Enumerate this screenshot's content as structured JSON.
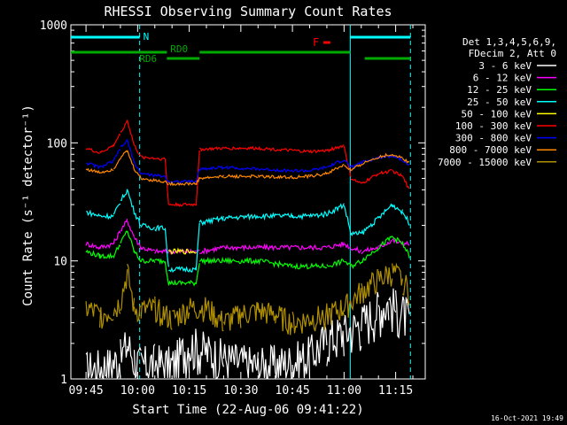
{
  "chart_data": {
    "type": "line",
    "title": "RHESSI Observing Summary Count Rates",
    "xlabel": "Start Time (22-Aug-06 09:41:22)",
    "ylabel": "Count Rate (s⁻¹ detector⁻¹)",
    "y_scale": "log",
    "ylim": [
      1,
      1000
    ],
    "xlim_minutes": [
      -4.4,
      98.6
    ],
    "y_ticks": [
      1,
      10,
      100,
      1000
    ],
    "y_tick_labels": [
      "1",
      "10",
      "100",
      "1000"
    ],
    "x_ticks": [
      0,
      15,
      30,
      45,
      60,
      75,
      90
    ],
    "x_tick_labels": [
      "09:45",
      "10:00",
      "10:15",
      "10:30",
      "10:45",
      "11:00",
      "11:15"
    ],
    "grid": false,
    "legend_position": "right",
    "legend_header": [
      "Det 1,3,4,5,6,9,",
      "FDecim 2, Att 0"
    ],
    "footer": "16-Oct-2021 19:49",
    "annotations": {
      "night_label": "N",
      "flare_label": "F",
      "rd0_label": "RD0",
      "rd6_label": "RD6",
      "night_bar_minutes": [
        [
          -4.4,
          15.6
        ],
        [
          76.8,
          94.3
        ]
      ],
      "day_lines_minutes": [
        15.6,
        76.8,
        94.3
      ],
      "rd0_bar_minutes": [
        [
          -4.4,
          23.5
        ],
        [
          33,
          76.8
        ],
        [
          81,
          94.3
        ]
      ],
      "rd6_bar_minutes": [
        [
          23.5,
          33
        ]
      ],
      "flare_bar_minutes": [
        [
          69,
          71
        ]
      ]
    },
    "series": [
      {
        "name": "3 - 6 keV",
        "color": "#ffffff",
        "x": [
          0,
          6,
          10,
          12,
          14,
          16,
          20,
          25,
          30,
          40,
          50,
          60,
          65,
          70,
          75,
          80,
          85,
          88,
          90,
          93,
          94
        ],
        "y": [
          1.2,
          1.3,
          1.5,
          2.0,
          1.5,
          1.3,
          1.4,
          1.3,
          2.0,
          1.5,
          1.3,
          1.4,
          1.6,
          2.2,
          2.5,
          3.0,
          4.0,
          4.5,
          4.0,
          3.5,
          3.0
        ]
      },
      {
        "name": "6 - 12 keV",
        "color": "#ff00ff",
        "x": [
          0,
          4,
          8,
          10,
          12,
          14,
          16,
          20,
          24,
          25,
          32,
          33,
          40,
          50,
          60,
          65,
          70,
          75,
          77,
          80,
          85,
          89,
          92,
          94
        ],
        "y": [
          14,
          13,
          14,
          18,
          22,
          16,
          13,
          12,
          12,
          12,
          12,
          12,
          13,
          13,
          13,
          13,
          13,
          14,
          13,
          12,
          13,
          15,
          14,
          14
        ]
      },
      {
        "name": "12 - 25 keV",
        "color": "#00ff00",
        "x": [
          0,
          4,
          8,
          10,
          12,
          14,
          16,
          20,
          23,
          24,
          32,
          33,
          40,
          50,
          60,
          65,
          70,
          75,
          77,
          80,
          85,
          89,
          92,
          94
        ],
        "y": [
          12,
          11,
          11,
          14,
          18,
          12,
          10,
          10,
          10,
          6.5,
          6.5,
          10,
          10,
          10,
          9,
          9,
          9,
          10,
          9,
          10,
          13,
          16,
          14,
          11
        ]
      },
      {
        "name": "25 - 50 keV",
        "color": "#00ffff",
        "x": [
          0,
          4,
          8,
          10,
          12,
          14,
          16,
          20,
          23,
          24,
          32,
          33,
          40,
          50,
          60,
          65,
          70,
          75,
          77,
          80,
          85,
          89,
          92,
          94
        ],
        "y": [
          26,
          24,
          24,
          32,
          40,
          26,
          20,
          19,
          19,
          8.5,
          8.5,
          21,
          23,
          24,
          24,
          24,
          25,
          30,
          17,
          17,
          23,
          30,
          26,
          21
        ]
      },
      {
        "name": "50 - 100 keV",
        "color": "#ffff00",
        "x": [
          0,
          4,
          8,
          10,
          12,
          14,
          16,
          20,
          23,
          24,
          32,
          33,
          94
        ],
        "y": [
          null,
          null,
          null,
          null,
          null,
          null,
          null,
          null,
          null,
          12,
          12,
          null,
          null
        ]
      },
      {
        "name": "100 - 300 keV",
        "color": "#ff0000",
        "x": [
          0,
          4,
          8,
          10,
          12,
          14,
          16,
          20,
          23,
          24,
          32,
          33,
          40,
          50,
          60,
          65,
          70,
          75,
          77,
          80,
          85,
          89,
          92,
          94
        ],
        "y": [
          90,
          82,
          95,
          120,
          155,
          95,
          76,
          74,
          73,
          30,
          30,
          88,
          90,
          90,
          86,
          84,
          86,
          95,
          50,
          45,
          55,
          58,
          52,
          40
        ]
      },
      {
        "name": "300 - 800 keV",
        "color": "#0000ff",
        "x": [
          0,
          4,
          8,
          10,
          12,
          14,
          16,
          20,
          23,
          24,
          32,
          33,
          40,
          50,
          60,
          65,
          70,
          75,
          77,
          80,
          85,
          89,
          92,
          94
        ],
        "y": [
          68,
          62,
          70,
          90,
          105,
          68,
          55,
          53,
          52,
          47,
          47,
          60,
          62,
          60,
          58,
          58,
          62,
          72,
          62,
          68,
          75,
          78,
          72,
          65
        ]
      },
      {
        "name": "800 - 7000 keV",
        "color": "#ff8800",
        "x": [
          0,
          4,
          8,
          10,
          12,
          14,
          16,
          20,
          23,
          24,
          32,
          33,
          40,
          50,
          60,
          65,
          70,
          75,
          77,
          80,
          85,
          89,
          92,
          94
        ],
        "y": [
          60,
          56,
          60,
          75,
          85,
          60,
          50,
          48,
          47,
          45,
          45,
          50,
          52,
          52,
          51,
          52,
          55,
          65,
          58,
          66,
          76,
          80,
          74,
          68
        ]
      },
      {
        "name": "7000 - 15000 keV",
        "color": "#b09000",
        "x": [
          0,
          4,
          8,
          10,
          12,
          14,
          16,
          20,
          25,
          30,
          35,
          40,
          45,
          50,
          55,
          60,
          65,
          70,
          75,
          80,
          85,
          89,
          92,
          94
        ],
        "y": [
          4.0,
          3.5,
          3.8,
          4.5,
          8.0,
          4.0,
          3.8,
          4.0,
          3.2,
          4.0,
          4.0,
          3.0,
          3.5,
          3.8,
          3.5,
          3.0,
          3.2,
          3.5,
          4.0,
          5.5,
          7.0,
          8.0,
          7.0,
          5.5
        ]
      }
    ]
  }
}
